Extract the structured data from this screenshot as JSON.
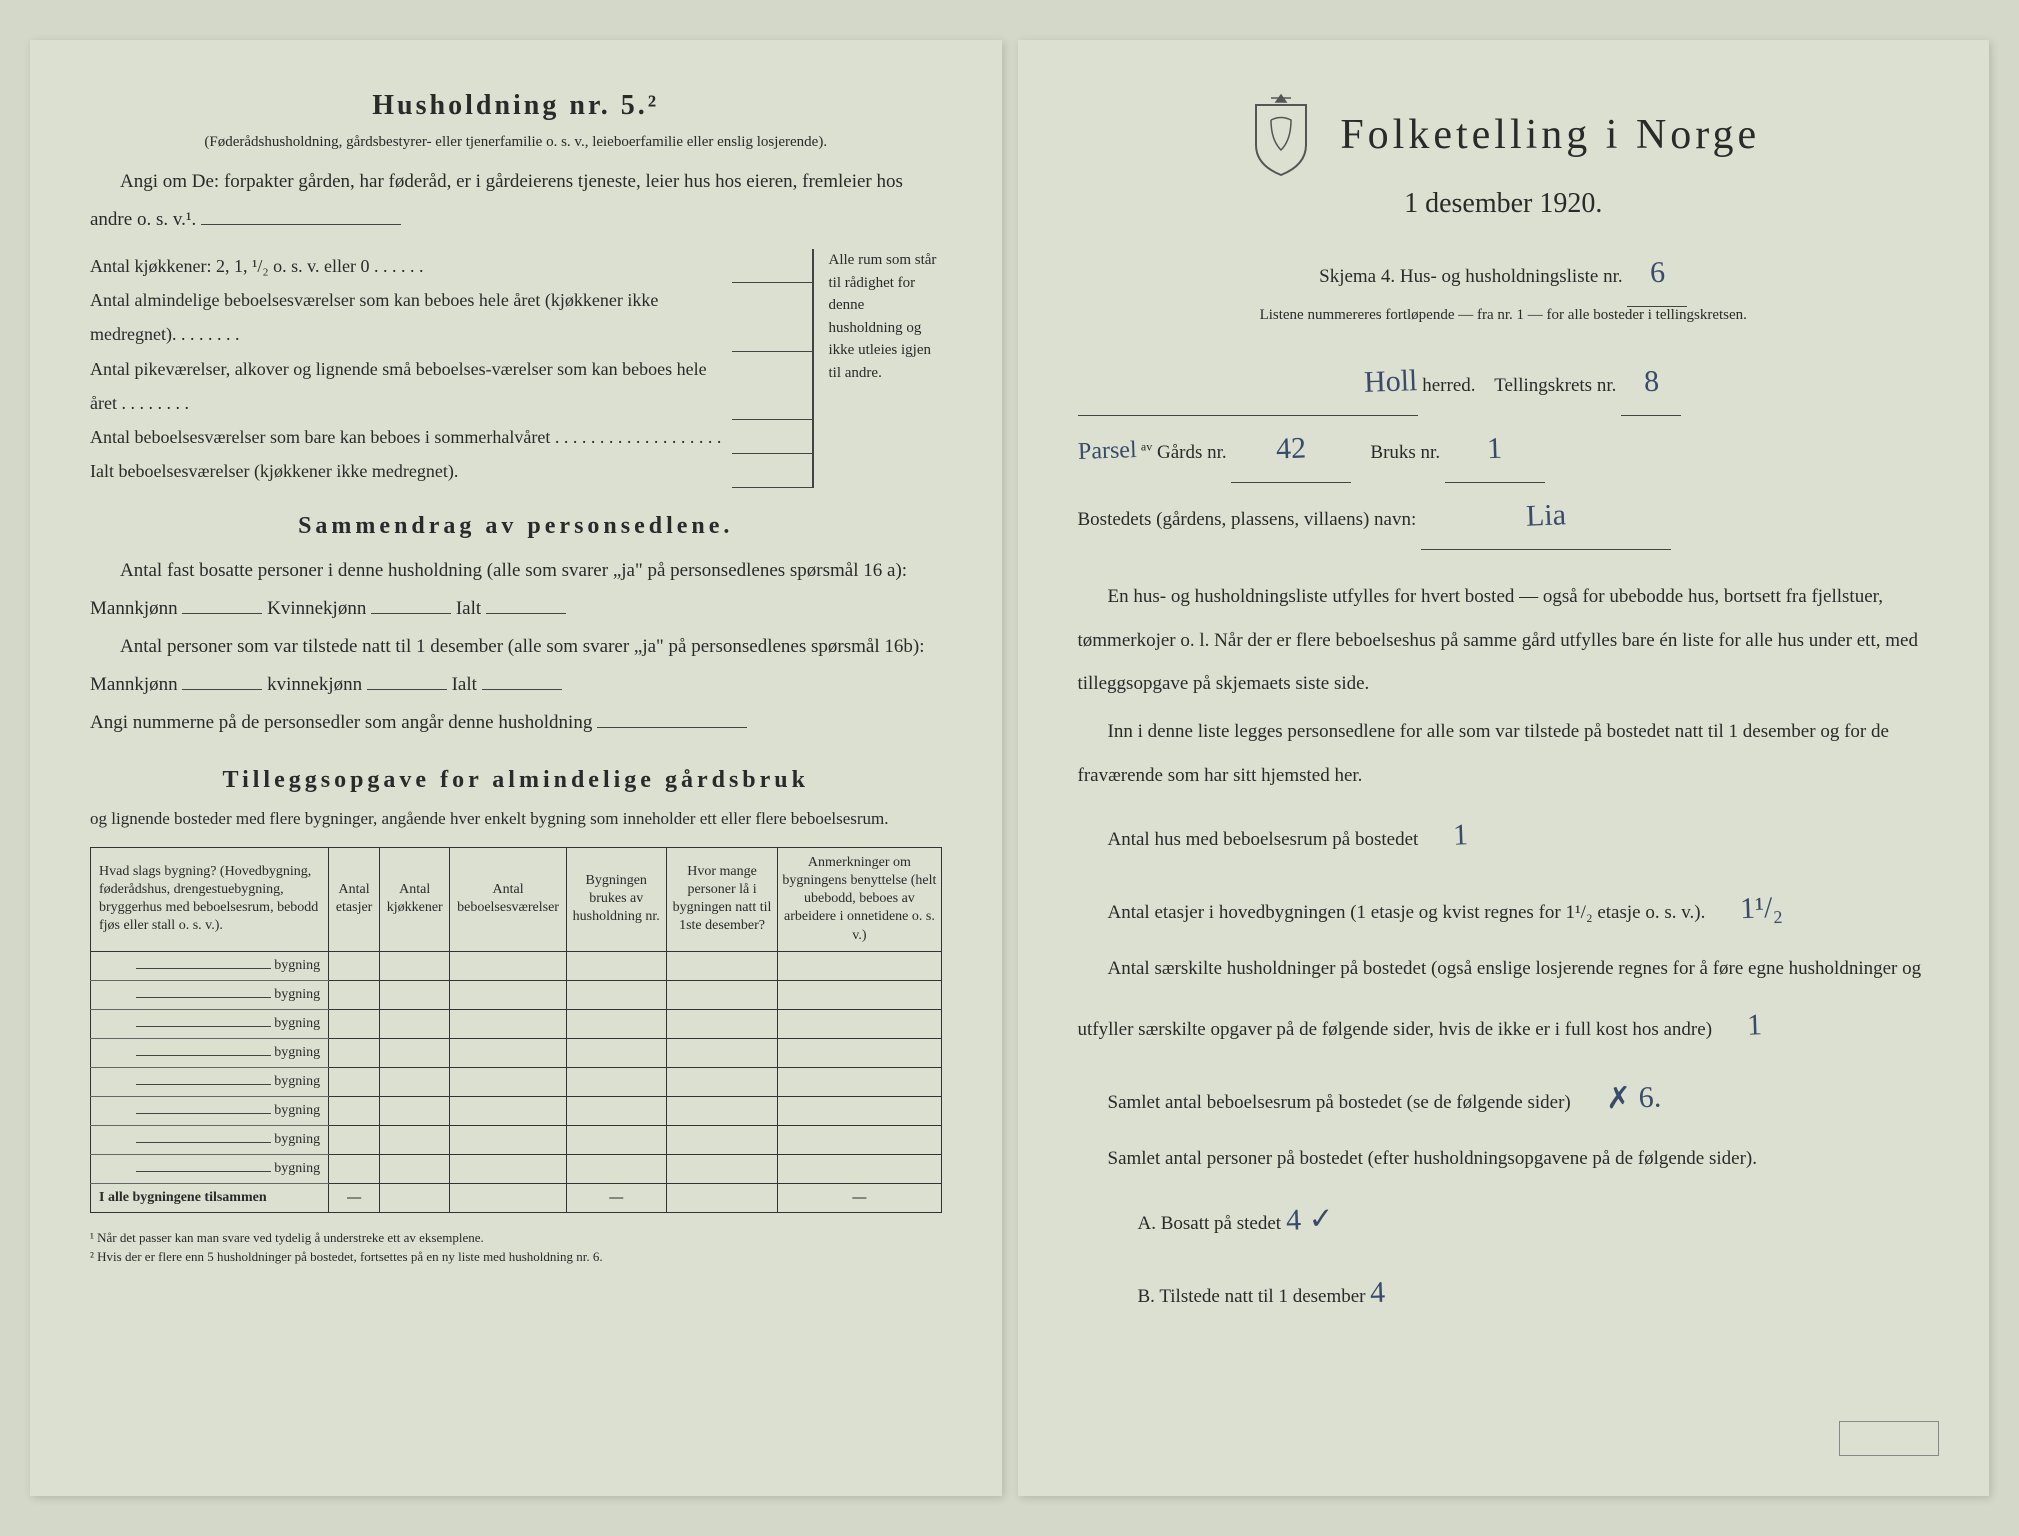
{
  "left": {
    "heading": "Husholdning nr. 5.²",
    "heading_note": "(Føderådshusholdning, gårdsbestyrer- eller tjenerfamilie o. s. v., leieboerfamilie eller enslig losjerende).",
    "intro": "Angi om De: forpakter gården, har føderåd, er i gårdeierens tjeneste, leier hus hos eieren, fremleier hos andre o. s. v.¹.",
    "kitchen_line": "Antal kjøkkener: 2, 1, ¹/₂ o. s. v. eller 0 . . . . . .",
    "brace_rows": [
      "Antal almindelige beboelsesværelser som kan beboes hele året (kjøkkener ikke medregnet). . . . . . . .",
      "Antal pikeværelser, alkover og lignende små beboelses-værelser som kan beboes hele året . . . . . . . .",
      "Antal beboelsesværelser som bare kan beboes i sommerhalvåret . . . . . . . . . . . . . . . . . . .",
      "Ialt beboelsesværelser (kjøkkener ikke medregnet)."
    ],
    "brace_side": "Alle rum som står til rådighet for denne husholdning og ikke utleies igjen til andre.",
    "summary_heading": "Sammendrag av personsedlene.",
    "summary_p1": "Antal fast bosatte personer i denne husholdning (alle som svarer „ja\" på personsedlenes spørsmål 16 a): Mannkjønn",
    "summary_p1b": "Kvinnekjønn",
    "summary_p1c": "Ialt",
    "summary_p2": "Antal personer som var tilstede natt til 1 desember (alle som svarer „ja\" på personsedlenes spørsmål 16b): Mannkjønn",
    "summary_p2b": "kvinnekjønn",
    "summary_p2c": "Ialt",
    "summary_p3": "Angi nummerne på de personsedler som angår denne husholdning",
    "tillegg_heading": "Tilleggsopgave for almindelige gårdsbruk",
    "tillegg_sub": "og lignende bosteder med flere bygninger, angående hver enkelt bygning som inneholder ett eller flere beboelsesrum.",
    "table": {
      "headers": [
        "Hvad slags bygning?\n(Hovedbygning, føderådshus, drengestuebygning, bryggerhus med beboelsesrum, bebodd fjøs eller stall o. s. v.).",
        "Antal etasjer",
        "Antal kjøkkener",
        "Antal beboelsesværelser",
        "Bygningen brukes av husholdning nr.",
        "Hvor mange personer lå i bygningen natt til 1ste desember?",
        "Anmerkninger om bygningens benyttelse (helt ubebodd, beboes av arbeidere i onnetidene o. s. v.)"
      ],
      "row_label": "bygning",
      "row_count": 8,
      "total_label": "I alle bygningene tilsammen"
    },
    "footnotes": [
      "¹ Når det passer kan man svare ved tydelig å understreke ett av eksemplene.",
      "² Hvis der er flere enn 5 husholdninger på bostedet, fortsettes på en ny liste med husholdning nr. 6."
    ]
  },
  "right": {
    "title": "Folketelling i Norge",
    "subtitle": "1 desember 1920.",
    "skjema_line": "Skjema 4.  Hus- og husholdningsliste nr.",
    "skjema_nr": "6",
    "liste_note": "Listene nummereres fortløpende — fra nr. 1 — for alle bosteder i tellingskretsen.",
    "herred_value": "Holl",
    "herred_label": "herred.",
    "telling_label": "Tellingskrets nr.",
    "telling_value": "8",
    "parsel_label": "Parsel",
    "av_label": "av",
    "gards_label": "Gårds nr.",
    "gards_value": "42",
    "bruks_label": "Bruks nr.",
    "bruks_value": "1",
    "bosted_label": "Bostedets (gårdens, plassens, villaens) navn:",
    "bosted_value": "Lia",
    "para1": "En hus- og husholdningsliste utfylles for hvert bosted — også for ubebodde hus, bortsett fra fjellstuer, tømmerkojer o. l. Når der er flere beboelseshus på samme gård utfylles bare én liste for alle hus under ett, med tilleggsopgave på skjemaets siste side.",
    "para2": "Inn i denne liste legges personsedlene for alle som var tilstede på bostedet natt til 1 desember og for de fraværende som har sitt hjemsted her.",
    "q1_label": "Antal hus med beboelsesrum på bostedet",
    "q1_value": "1",
    "q2_label": "Antal etasjer i hovedbygningen (1 etasje og kvist regnes for 1¹/₂ etasje o. s. v.).",
    "q2_value": "1¹/₂",
    "q3_label": "Antal særskilte husholdninger på bostedet (også enslige losjerende regnes for å føre egne husholdninger og utfyller særskilte opgaver på de følgende sider, hvis de ikke er i full kost hos andre)",
    "q3_value": "1",
    "q4_label": "Samlet antal beboelsesrum på bostedet (se de følgende sider)",
    "q4_value": "✗ 6.",
    "q5_label": "Samlet antal personer på bostedet (efter husholdningsopgavene på de følgende sider).",
    "q5a_label": "A.  Bosatt på stedet",
    "q5a_value": "4 ✓",
    "q5b_label": "B.  Tilstede natt til 1 desember",
    "q5b_value": "4"
  },
  "colors": {
    "paper": "#dce0d0",
    "ink": "#2a2a2a",
    "handwriting": "#3a4a6a"
  }
}
